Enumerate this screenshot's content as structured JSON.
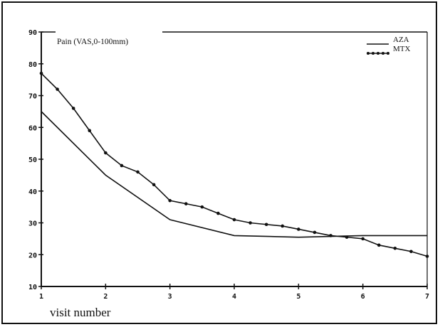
{
  "chart_data": {
    "type": "line",
    "title": "",
    "xlabel": "visit number",
    "ylabel": "Pain (VAS,0-100mm)",
    "x": [
      1,
      2,
      3,
      4,
      5,
      6,
      7
    ],
    "xlim": [
      1,
      7
    ],
    "ylim": [
      10,
      90
    ],
    "yticks": [
      10,
      20,
      30,
      40,
      50,
      60,
      70,
      80,
      90
    ],
    "xticks": [
      1,
      2,
      3,
      4,
      5,
      6,
      7
    ],
    "grid": false,
    "legend_position": "top-right",
    "series": [
      {
        "name": "AZA",
        "marker": "none",
        "color": "#111111",
        "x": [
          1,
          2,
          3,
          4,
          5,
          6,
          7
        ],
        "values": [
          65,
          45,
          31,
          26,
          25.5,
          26,
          26
        ]
      },
      {
        "name": "MTX",
        "marker": "dot",
        "color": "#111111",
        "x": [
          1,
          1.25,
          1.5,
          1.75,
          2,
          2.25,
          2.5,
          2.75,
          3,
          3.25,
          3.5,
          3.75,
          4,
          4.25,
          4.5,
          4.75,
          5,
          5.25,
          5.5,
          5.75,
          6,
          6.25,
          6.5,
          6.75,
          7
        ],
        "values": [
          77,
          72,
          66,
          59,
          52,
          48,
          46,
          42,
          37,
          36,
          35,
          33,
          31,
          30,
          29.5,
          29,
          28,
          27,
          26,
          25.5,
          25,
          23,
          22,
          21,
          19.5
        ]
      }
    ]
  }
}
